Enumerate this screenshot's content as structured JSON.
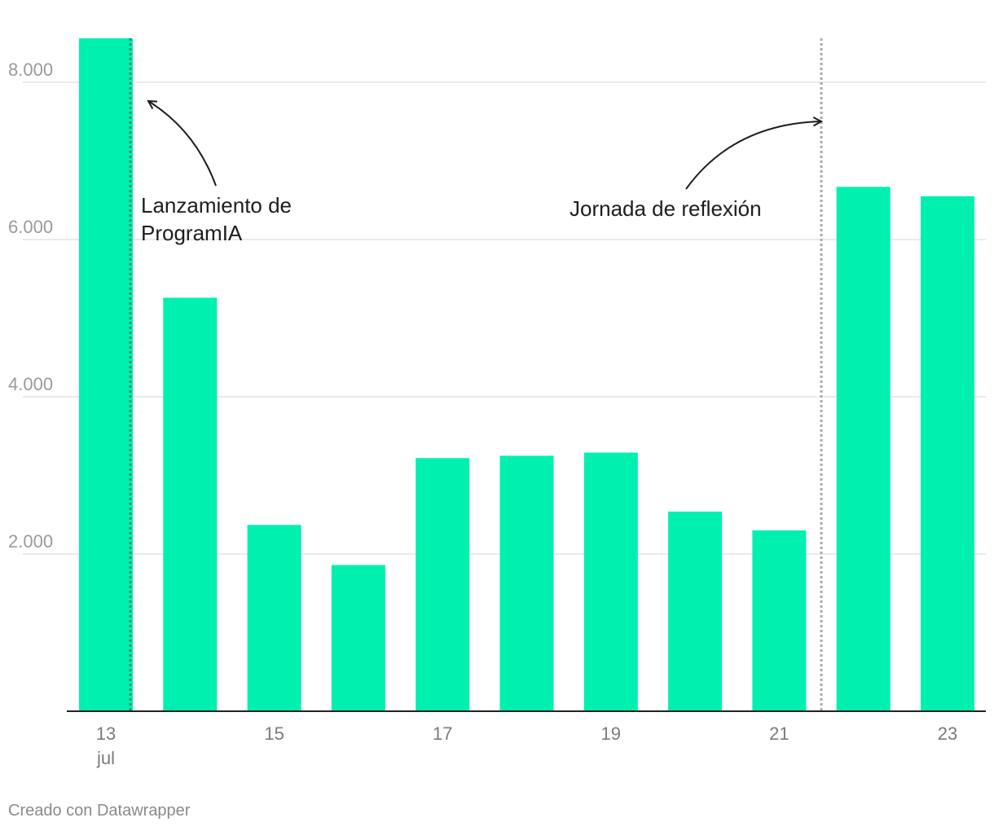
{
  "chart_data": {
    "type": "bar",
    "categories": [
      "13",
      "14",
      "15",
      "16",
      "17",
      "18",
      "19",
      "20",
      "21",
      "22",
      "23"
    ],
    "values": [
      8560,
      5260,
      2370,
      1860,
      3220,
      3250,
      3290,
      2540,
      2300,
      6670,
      6550
    ],
    "x_tick_labels": [
      {
        "index": 0,
        "lines": [
          "13",
          "jul"
        ]
      },
      {
        "index": 2,
        "lines": [
          "15"
        ]
      },
      {
        "index": 4,
        "lines": [
          "17"
        ]
      },
      {
        "index": 6,
        "lines": [
          "19"
        ]
      },
      {
        "index": 8,
        "lines": [
          "21"
        ]
      },
      {
        "index": 10,
        "lines": [
          "23"
        ]
      }
    ],
    "y_ticks": [
      2000,
      4000,
      6000,
      8000
    ],
    "y_tick_labels": [
      "2.000",
      "4.000",
      "6.000",
      "8.000"
    ],
    "ylim": [
      0,
      8560
    ],
    "grid": true,
    "bar_color": "#00f0b0",
    "annotations": [
      {
        "after_index": 0,
        "lines": [
          "Lanzamiento de",
          "ProgramIA"
        ],
        "line_color": "#2f8f7a"
      },
      {
        "after_index": 8,
        "lines": [
          "Jornada de reflexión"
        ],
        "line_color": "#aaaaaa"
      }
    ]
  },
  "credit": "Creado con Datawrapper"
}
